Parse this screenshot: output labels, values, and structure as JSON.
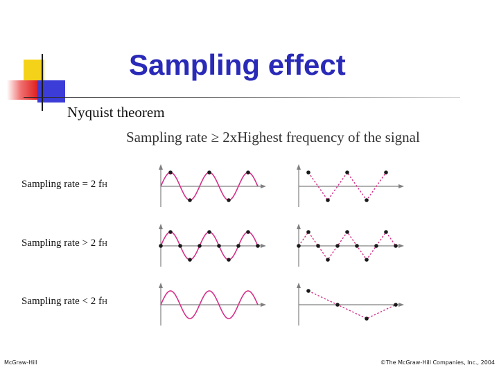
{
  "slide": {
    "title": "Sampling effect",
    "bullet": "Nyquist theorem",
    "formula": "Sampling rate ≥ 2xHighest frequency of the signal"
  },
  "rows": [
    {
      "label": "Sampling rate = 2 f",
      "subscript": "H",
      "case": "equal"
    },
    {
      "label": "Sampling rate > 2 f",
      "subscript": "H",
      "case": "greater"
    },
    {
      "label": "Sampling rate < 2 f",
      "subscript": "H",
      "case": "less"
    }
  ],
  "colors": {
    "title": "#2a2ab8",
    "wave": "#d4308a",
    "axis": "#808080",
    "point": "#1a1a1a"
  },
  "footer": {
    "left": "McGraw-Hill",
    "right": "©The McGraw-Hill Companies, Inc., 2004"
  }
}
